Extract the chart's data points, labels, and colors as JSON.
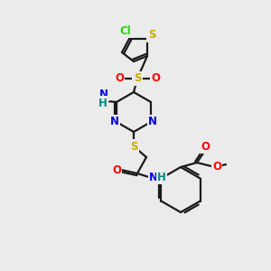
{
  "background_color": "#ebebeb",
  "bond_color": "#1a1a1a",
  "bond_width": 1.6,
  "figsize": [
    3.0,
    3.0
  ],
  "dpi": 100,
  "colors": {
    "Cl": "#22dd00",
    "S": "#ccaa00",
    "O": "#ff0000",
    "N": "#0000ee",
    "NH": "#008888",
    "C": "#1a1a1a"
  }
}
